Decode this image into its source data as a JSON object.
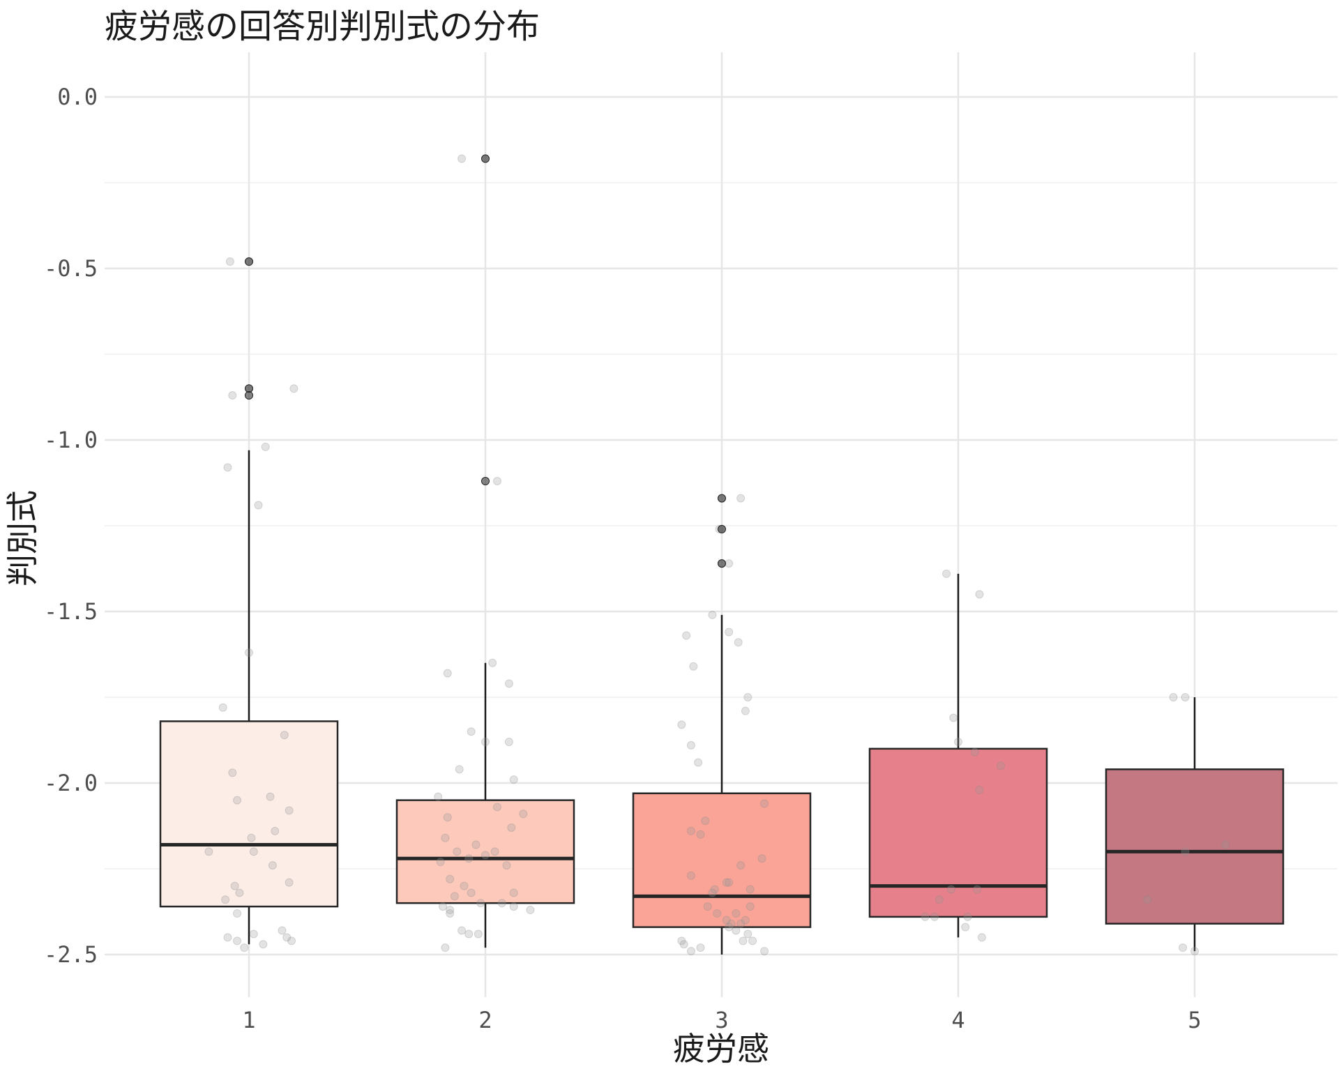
{
  "chart_data": {
    "type": "boxplot",
    "title": "疲労感の回答別判別式の分布",
    "xlabel": "疲労感",
    "ylabel": "判別式",
    "categories": [
      "1",
      "2",
      "3",
      "4",
      "5"
    ],
    "ylim": [
      -2.62,
      0.12
    ],
    "yticks": [
      0.0,
      -0.5,
      -1.0,
      -1.5,
      -2.0,
      -2.5
    ],
    "ytick_labels": [
      "0.0",
      "-0.5",
      "-1.0",
      "-1.5",
      "-2.0",
      "-2.5"
    ],
    "grid": true,
    "legend": "none",
    "colors": [
      "#fdede7",
      "#fcc9bb",
      "#f9a497",
      "#e6808a",
      "#c47882"
    ],
    "boxes": [
      {
        "category": "1",
        "whisker_low": -2.47,
        "q1": -2.36,
        "median": -2.18,
        "q3": -1.82,
        "whisker_high": -1.03,
        "outliers": [
          -0.48,
          -0.85,
          -0.87
        ]
      },
      {
        "category": "2",
        "whisker_low": -2.48,
        "q1": -2.35,
        "median": -2.22,
        "q3": -2.05,
        "whisker_high": -1.65,
        "outliers": [
          -0.18,
          -1.12
        ]
      },
      {
        "category": "3",
        "whisker_low": -2.5,
        "q1": -2.42,
        "median": -2.33,
        "q3": -2.03,
        "whisker_high": -1.51,
        "outliers": [
          -1.17,
          -1.26,
          -1.36
        ]
      },
      {
        "category": "4",
        "whisker_low": -2.45,
        "q1": -2.39,
        "median": -2.3,
        "q3": -1.9,
        "whisker_high": -1.39,
        "outliers": []
      },
      {
        "category": "5",
        "whisker_low": -2.49,
        "q1": -2.41,
        "median": -2.2,
        "q3": -1.96,
        "whisker_high": -1.75,
        "outliers": []
      }
    ],
    "points": [
      {
        "category": "1",
        "x_offset": [
          -0.08,
          0.0,
          0.19,
          -0.07,
          0.0,
          0.07,
          -0.09,
          0.04,
          0.0,
          -0.11,
          0.15,
          -0.07,
          0.09,
          0.17,
          -0.05,
          0.01,
          0.11,
          0.02,
          -0.17,
          0.1,
          -0.06,
          0.17,
          -0.04,
          -0.1,
          -0.05,
          0.14,
          -0.09,
          0.16,
          -0.05,
          0.02,
          0.06,
          0.18,
          -0.02
        ],
        "y": [
          -0.48,
          -0.48,
          -0.85,
          -0.87,
          -0.85,
          -1.02,
          -1.08,
          -1.19,
          -1.62,
          -1.78,
          -1.86,
          -1.97,
          -2.04,
          -2.08,
          -2.05,
          -2.16,
          -2.14,
          -2.2,
          -2.2,
          -2.24,
          -2.3,
          -2.29,
          -2.32,
          -2.34,
          -2.38,
          -2.43,
          -2.45,
          -2.45,
          -2.46,
          -2.44,
          -2.47,
          -2.46,
          -2.48
        ]
      },
      {
        "category": "2",
        "x_offset": [
          -0.1,
          0.0,
          0.05,
          -0.16,
          0.03,
          0.1,
          0.0,
          -0.06,
          0.1,
          -0.11,
          0.12,
          -0.2,
          0.05,
          -0.16,
          0.16,
          0.11,
          -0.17,
          0.0,
          0.04,
          -0.12,
          -0.04,
          -0.07,
          0.09,
          -0.19,
          -0.15,
          -0.09,
          -0.06,
          0.12,
          -0.13,
          -0.02,
          0.07,
          0.12,
          -0.18,
          0.19,
          -0.15,
          -0.15,
          -0.07,
          -0.1,
          -0.03,
          -0.17
        ],
        "y": [
          -0.18,
          -0.18,
          -1.12,
          -1.68,
          -1.65,
          -1.71,
          -1.88,
          -1.85,
          -1.88,
          -1.96,
          -1.99,
          -2.04,
          -2.07,
          -2.1,
          -2.09,
          -2.13,
          -2.16,
          -2.21,
          -2.2,
          -2.2,
          -2.18,
          -2.22,
          -2.24,
          -2.23,
          -2.28,
          -2.3,
          -2.32,
          -2.32,
          -2.33,
          -2.35,
          -2.35,
          -2.36,
          -2.36,
          -2.37,
          -2.37,
          -2.38,
          -2.44,
          -2.43,
          -2.44,
          -2.48
        ]
      },
      {
        "category": "3",
        "x_offset": [
          0.0,
          0.08,
          0.0,
          -0.01,
          0.0,
          0.03,
          -0.04,
          0.03,
          -0.15,
          0.07,
          -0.12,
          0.11,
          0.1,
          -0.17,
          -0.13,
          -0.1,
          0.18,
          -0.07,
          -0.13,
          -0.09,
          0.17,
          0.08,
          -0.13,
          0.02,
          -0.03,
          0.03,
          0.12,
          -0.04,
          0.12,
          -0.06,
          0.06,
          -0.02,
          0.02,
          0.1,
          0.04,
          0.08,
          0.11,
          -0.17,
          -0.16,
          0.13,
          -0.13,
          0.06,
          -0.09,
          0.03,
          0.09,
          0.18
        ],
        "y": [
          -1.17,
          -1.17,
          -1.26,
          -1.26,
          -1.36,
          -1.36,
          -1.51,
          -1.56,
          -1.57,
          -1.59,
          -1.66,
          -1.75,
          -1.79,
          -1.83,
          -1.89,
          -1.94,
          -2.06,
          -2.11,
          -2.14,
          -2.15,
          -2.22,
          -2.24,
          -2.27,
          -2.29,
          -2.31,
          -2.29,
          -2.31,
          -2.32,
          -2.36,
          -2.36,
          -2.38,
          -2.38,
          -2.4,
          -2.4,
          -2.41,
          -2.41,
          -2.44,
          -2.46,
          -2.47,
          -2.46,
          -2.49,
          -2.43,
          -2.48,
          -2.42,
          -2.46,
          -2.49
        ]
      },
      {
        "category": "4",
        "x_offset": [
          -0.05,
          0.09,
          -0.02,
          0.0,
          0.07,
          0.18,
          0.09,
          -0.03,
          0.08,
          -0.08,
          -0.1,
          -0.14,
          0.04,
          0.03,
          0.1
        ],
        "y": [
          -1.39,
          -1.45,
          -1.81,
          -1.88,
          -1.91,
          -1.95,
          -2.02,
          -2.31,
          -2.31,
          -2.34,
          -2.39,
          -2.39,
          -2.39,
          -2.42,
          -2.45
        ]
      },
      {
        "category": "5",
        "x_offset": [
          -0.09,
          -0.04,
          0.13,
          -0.04,
          -0.2,
          0.0,
          -0.05
        ],
        "y": [
          -1.75,
          -1.75,
          -2.18,
          -2.2,
          -2.34,
          -2.49,
          -2.48
        ]
      }
    ]
  }
}
